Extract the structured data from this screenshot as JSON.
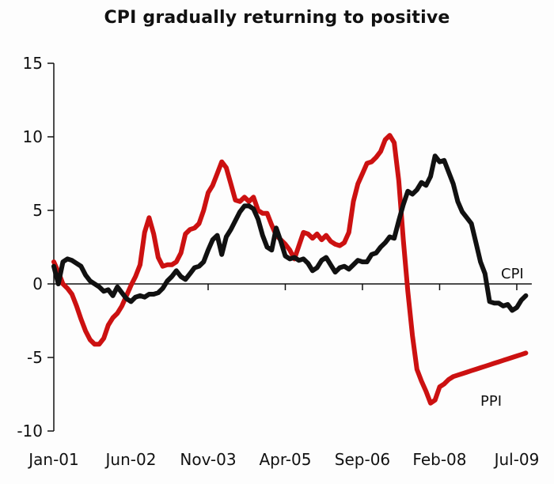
{
  "chart_data": {
    "type": "line",
    "title": "CPI gradually returning to positive",
    "xlabel": "",
    "ylabel": "",
    "ylim": [
      -10,
      15
    ],
    "yticks": [
      15,
      10,
      5,
      0,
      -5,
      -10
    ],
    "xtick_labels": [
      "Jan-01",
      "Jun-02",
      "Nov-03",
      "Apr-05",
      "Sep-06",
      "Feb-08",
      "Jul-09"
    ],
    "x_unit": "months since Jan-01",
    "xtick_months": [
      0,
      17,
      34,
      51,
      68,
      85,
      102
    ],
    "xlim": [
      0,
      106
    ],
    "grid": false,
    "legend": "inline labels at line ends",
    "series": [
      {
        "name": "CPI",
        "color": "#111111",
        "x": [
          0,
          1,
          2,
          3,
          4,
          5,
          6,
          7,
          8,
          9,
          10,
          11,
          12,
          13,
          14,
          15,
          16,
          17,
          18,
          19,
          20,
          21,
          22,
          23,
          24,
          25,
          26,
          27,
          28,
          29,
          30,
          31,
          32,
          33,
          34,
          35,
          36,
          37,
          38,
          39,
          40,
          41,
          42,
          43,
          44,
          45,
          46,
          47,
          48,
          49,
          50,
          51,
          52,
          53,
          54,
          55,
          56,
          57,
          58,
          59,
          60,
          61,
          62,
          63,
          64,
          65,
          66,
          67,
          68,
          69,
          70,
          71,
          72,
          73,
          74,
          75,
          76,
          77,
          78,
          79,
          80,
          81,
          82,
          83,
          84,
          85,
          86,
          87,
          88,
          89,
          90,
          91,
          92,
          93,
          94,
          95,
          96,
          97,
          98,
          99,
          100,
          101,
          102,
          103,
          104
        ],
        "values": [
          1.2,
          0.0,
          1.5,
          1.7,
          1.6,
          1.4,
          1.2,
          0.6,
          0.2,
          0.0,
          -0.2,
          -0.5,
          -0.4,
          -0.8,
          -0.2,
          -0.6,
          -1.0,
          -1.2,
          -0.9,
          -0.8,
          -0.9,
          -0.7,
          -0.7,
          -0.6,
          -0.3,
          0.2,
          0.5,
          0.9,
          0.5,
          0.3,
          0.7,
          1.1,
          1.2,
          1.5,
          2.3,
          3.0,
          3.3,
          2.0,
          3.2,
          3.7,
          4.3,
          4.9,
          5.3,
          5.3,
          5.1,
          4.4,
          3.3,
          2.5,
          2.3,
          3.8,
          2.9,
          1.9,
          1.7,
          1.8,
          1.6,
          1.7,
          1.4,
          0.9,
          1.1,
          1.6,
          1.8,
          1.3,
          0.8,
          1.1,
          1.2,
          1.0,
          1.3,
          1.6,
          1.5,
          1.5,
          2.0,
          2.1,
          2.5,
          2.8,
          3.2,
          3.1,
          4.3,
          5.4,
          6.3,
          6.1,
          6.4,
          6.9,
          6.7,
          7.3,
          8.7,
          8.3,
          8.4,
          7.6,
          6.8,
          5.6,
          4.9,
          4.5,
          4.1,
          2.8,
          1.5,
          0.7,
          -1.2,
          -1.3,
          -1.3,
          -1.5,
          -1.4,
          -1.8,
          -1.6,
          -1.1,
          -0.8
        ]
      },
      {
        "name": "PPI",
        "color": "#cc1111",
        "x": [
          0,
          1,
          2,
          3,
          4,
          5,
          6,
          7,
          8,
          9,
          10,
          11,
          12,
          13,
          14,
          15,
          16,
          17,
          18,
          19,
          20,
          21,
          22,
          23,
          24,
          25,
          26,
          27,
          28,
          29,
          30,
          31,
          32,
          33,
          34,
          35,
          36,
          37,
          38,
          39,
          40,
          41,
          42,
          43,
          44,
          45,
          46,
          47,
          48,
          49,
          50,
          51,
          52,
          53,
          54,
          55,
          56,
          57,
          58,
          59,
          60,
          61,
          62,
          63,
          64,
          65,
          66,
          67,
          68,
          69,
          70,
          71,
          72,
          73,
          74,
          75,
          76,
          77,
          78,
          79,
          80,
          81,
          82,
          83,
          84,
          85,
          86,
          87,
          88,
          89,
          90,
          91,
          92,
          93,
          94,
          95,
          96,
          97,
          98,
          99,
          100,
          101,
          102,
          103,
          104
        ],
        "values": [
          1.5,
          0.8,
          0.0,
          -0.3,
          -0.7,
          -1.5,
          -2.4,
          -3.2,
          -3.8,
          -4.1,
          -4.1,
          -3.7,
          -2.8,
          -2.3,
          -2.0,
          -1.5,
          -0.8,
          -0.1,
          0.5,
          1.3,
          3.5,
          4.5,
          3.4,
          1.8,
          1.2,
          1.3,
          1.3,
          1.5,
          2.1,
          3.4,
          3.7,
          3.8,
          4.1,
          5.0,
          6.2,
          6.7,
          7.5,
          8.3,
          7.9,
          6.8,
          5.7,
          5.6,
          5.9,
          5.6,
          5.9,
          5.0,
          4.8,
          4.8,
          4.0,
          3.3,
          3.0,
          2.7,
          2.3,
          1.7,
          2.6,
          3.5,
          3.4,
          3.1,
          3.4,
          3.0,
          3.3,
          2.9,
          2.7,
          2.6,
          2.8,
          3.5,
          5.6,
          6.8,
          7.5,
          8.2,
          8.3,
          8.6,
          9.0,
          9.8,
          10.1,
          9.6,
          7.0,
          3.0,
          -0.5,
          -3.5,
          -5.8,
          -6.6,
          -7.3,
          -8.1,
          -7.9,
          -7.0,
          -6.8,
          -6.5,
          -6.3,
          -6.2,
          -6.1,
          -6.0,
          -5.9,
          -5.8,
          -5.7,
          -5.6,
          -5.5,
          -5.4,
          -5.3,
          -5.2,
          -5.1,
          -5.0,
          -4.9,
          -4.8,
          -4.7
        ],
        "end_month": 104
      }
    ]
  }
}
